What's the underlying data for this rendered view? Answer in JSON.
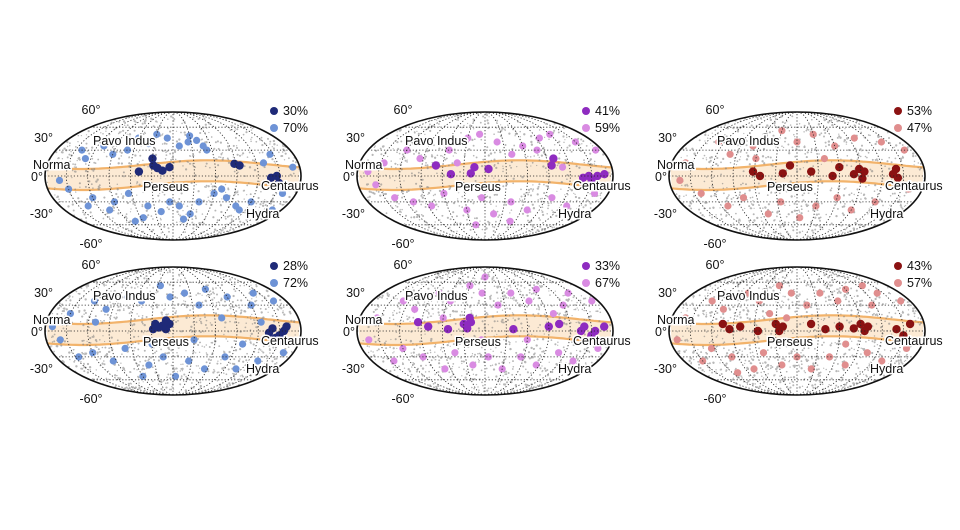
{
  "chart_data": [
    {
      "type": "scatter",
      "projection": "mollweide",
      "lat_ticks": [
        "60°",
        "30°",
        "0°",
        "-30°",
        "-60°"
      ],
      "region_labels": [
        "Norma",
        "Pavo Indus",
        "Perseus",
        "Centaurus",
        "Hydra"
      ],
      "legend": [
        {
          "label": "30%",
          "color": "#1f2a78"
        },
        {
          "label": "70%",
          "color": "#6e93d6"
        }
      ],
      "dark_points": [
        [
          95,
          12
        ],
        [
          88,
          14
        ],
        [
          -5,
          10
        ],
        [
          -15,
          6
        ],
        [
          -22,
          9
        ],
        [
          -28,
          12
        ],
        [
          -30,
          20
        ],
        [
          -48,
          5
        ],
        [
          138,
          -2
        ],
        [
          146,
          0
        ],
        [
          150,
          -8
        ],
        [
          155,
          -12
        ]
      ],
      "light_points": [
        [
          52,
          30
        ],
        [
          48,
          35
        ],
        [
          40,
          42
        ],
        [
          30,
          48
        ],
        [
          25,
          40
        ],
        [
          10,
          35
        ],
        [
          -10,
          45
        ],
        [
          -30,
          50
        ],
        [
          -40,
          38
        ],
        [
          -60,
          45
        ],
        [
          -70,
          30
        ],
        [
          -90,
          25
        ],
        [
          -110,
          35
        ],
        [
          -128,
          20
        ],
        [
          -140,
          30
        ],
        [
          70,
          -15
        ],
        [
          80,
          -25
        ],
        [
          60,
          -20
        ],
        [
          40,
          -30
        ],
        [
          30,
          -45
        ],
        [
          20,
          -52
        ],
        [
          10,
          -35
        ],
        [
          -5,
          -30
        ],
        [
          -20,
          -42
        ],
        [
          -40,
          -35
        ],
        [
          -55,
          -50
        ],
        [
          -65,
          -20
        ],
        [
          -75,
          -55
        ],
        [
          -90,
          -30
        ],
        [
          -105,
          -40
        ],
        [
          -120,
          -25
        ],
        [
          -135,
          -35
        ],
        [
          -150,
          -15
        ],
        [
          -160,
          -5
        ],
        [
          120,
          -30
        ],
        [
          110,
          -40
        ],
        [
          130,
          15
        ],
        [
          100,
          -35
        ],
        [
          160,
          -20
        ],
        [
          170,
          10
        ],
        [
          165,
          -40
        ],
        [
          145,
          25
        ]
      ]
    },
    {
      "type": "scatter",
      "projection": "mollweide",
      "lat_ticks": [
        "60°",
        "30°",
        "0°",
        "-30°",
        "-60°"
      ],
      "region_labels": [
        "Norma",
        "Pavo Indus",
        "Perseus",
        "Centaurus",
        "Hydra"
      ],
      "legend": [
        {
          "label": "41%",
          "color": "#8e2bc0"
        },
        {
          "label": "59%",
          "color": "#d98be2"
        }
      ],
      "dark_points": [
        [
          168,
          2
        ],
        [
          158,
          0
        ],
        [
          100,
          20
        ],
        [
          95,
          12
        ],
        [
          5,
          8
        ],
        [
          -15,
          10
        ],
        [
          -20,
          3
        ],
        [
          -48,
          2
        ],
        [
          -70,
          12
        ],
        [
          138,
          -2
        ],
        [
          146,
          0
        ],
        [
          150,
          -4
        ]
      ],
      "light_points": [
        [
          170,
          30
        ],
        [
          150,
          40
        ],
        [
          120,
          50
        ],
        [
          95,
          45
        ],
        [
          80,
          30
        ],
        [
          60,
          35
        ],
        [
          40,
          25
        ],
        [
          20,
          40
        ],
        [
          -10,
          50
        ],
        [
          -30,
          45
        ],
        [
          -55,
          30
        ],
        [
          -70,
          40
        ],
        [
          -95,
          20
        ],
        [
          -120,
          30
        ],
        [
          -145,
          15
        ],
        [
          -165,
          5
        ],
        [
          160,
          -20
        ],
        [
          130,
          -35
        ],
        [
          100,
          -25
        ],
        [
          70,
          -40
        ],
        [
          40,
          -30
        ],
        [
          15,
          -45
        ],
        [
          -5,
          -25
        ],
        [
          -30,
          -40
        ],
        [
          -60,
          -20
        ],
        [
          -85,
          -35
        ],
        [
          -110,
          -30
        ],
        [
          -135,
          -25
        ],
        [
          -155,
          -10
        ],
        [
          -20,
          -60
        ],
        [
          50,
          -55
        ],
        [
          110,
          10
        ],
        [
          -40,
          15
        ],
        [
          0,
          -15
        ]
      ]
    },
    {
      "type": "scatter",
      "projection": "mollweide",
      "lat_ticks": [
        "60°",
        "30°",
        "0°",
        "-30°",
        "-60°"
      ],
      "region_labels": [
        "Norma",
        "Pavo Indus",
        "Perseus",
        "Centaurus",
        "Hydra"
      ],
      "legend": [
        {
          "label": "53%",
          "color": "#8b1212"
        },
        {
          "label": "47%",
          "color": "#e08e8e"
        }
      ],
      "dark_points": [
        [
          95,
          5
        ],
        [
          92,
          -3
        ],
        [
          88,
          8
        ],
        [
          80,
          2
        ],
        [
          60,
          10
        ],
        [
          50,
          0
        ],
        [
          20,
          5
        ],
        [
          -20,
          3
        ],
        [
          -52,
          0
        ],
        [
          -62,
          5
        ],
        [
          135,
          2
        ],
        [
          140,
          8
        ],
        [
          142,
          -2
        ],
        [
          -10,
          12
        ]
      ],
      "light_points": [
        [
          165,
          30
        ],
        [
          140,
          40
        ],
        [
          100,
          45
        ],
        [
          60,
          35
        ],
        [
          30,
          50
        ],
        [
          0,
          40
        ],
        [
          -30,
          55
        ],
        [
          -70,
          35
        ],
        [
          -100,
          25
        ],
        [
          -130,
          40
        ],
        [
          -160,
          15
        ],
        [
          160,
          -15
        ],
        [
          120,
          -30
        ],
        [
          90,
          -40
        ],
        [
          60,
          -25
        ],
        [
          30,
          -35
        ],
        [
          5,
          -50
        ],
        [
          -25,
          -30
        ],
        [
          -50,
          -45
        ],
        [
          -80,
          -25
        ],
        [
          -110,
          -35
        ],
        [
          -140,
          -20
        ],
        [
          -165,
          -5
        ],
        [
          40,
          20
        ],
        [
          -60,
          20
        ]
      ]
    },
    {
      "type": "scatter",
      "projection": "mollweide",
      "lat_ticks": [
        "60°",
        "30°",
        "0°",
        "-30°",
        "-60°"
      ],
      "region_labels": [
        "Norma",
        "Pavo Indus",
        "Perseus",
        "Centaurus",
        "Hydra"
      ],
      "legend": [
        {
          "label": "28%",
          "color": "#1f2a78"
        },
        {
          "label": "72%",
          "color": "#6e93d6"
        }
      ],
      "dark_points": [
        [
          160,
          5
        ],
        [
          156,
          0
        ],
        [
          -5,
          8
        ],
        [
          -10,
          2
        ],
        [
          -15,
          6
        ],
        [
          -20,
          4
        ],
        [
          -25,
          8
        ],
        [
          -10,
          12
        ],
        [
          -28,
          2
        ],
        [
          135,
          -2
        ],
        [
          140,
          3
        ],
        [
          145,
          -8
        ],
        [
          155,
          -12
        ],
        [
          150,
          -5
        ]
      ],
      "light_points": [
        [
          160,
          35
        ],
        [
          140,
          45
        ],
        [
          120,
          30
        ],
        [
          90,
          40
        ],
        [
          60,
          50
        ],
        [
          40,
          30
        ],
        [
          20,
          45
        ],
        [
          -5,
          40
        ],
        [
          -25,
          55
        ],
        [
          -50,
          35
        ],
        [
          -75,
          40
        ],
        [
          -100,
          25
        ],
        [
          -125,
          35
        ],
        [
          -150,
          20
        ],
        [
          -170,
          5
        ],
        [
          165,
          -25
        ],
        [
          135,
          -35
        ],
        [
          110,
          -45
        ],
        [
          80,
          -30
        ],
        [
          55,
          -45
        ],
        [
          25,
          -35
        ],
        [
          5,
          -55
        ],
        [
          -15,
          -30
        ],
        [
          -40,
          -40
        ],
        [
          -70,
          -20
        ],
        [
          -95,
          -35
        ],
        [
          -120,
          -25
        ],
        [
          -145,
          -30
        ],
        [
          -160,
          -10
        ],
        [
          -30,
          -15
        ],
        [
          30,
          -10
        ],
        [
          70,
          15
        ],
        [
          -60,
          -55
        ],
        [
          100,
          -15
        ],
        [
          -110,
          10
        ],
        [
          125,
          10
        ]
      ]
    },
    {
      "type": "scatter",
      "projection": "mollweide",
      "lat_ticks": [
        "60°",
        "30°",
        "0°",
        "-30°",
        "-60°"
      ],
      "region_labels": [
        "Norma",
        "Pavo Indus",
        "Perseus",
        "Centaurus",
        "Hydra"
      ],
      "legend": [
        {
          "label": "33%",
          "color": "#8e2bc0"
        },
        {
          "label": "67%",
          "color": "#d98be2"
        }
      ],
      "dark_points": [
        [
          168,
          5
        ],
        [
          155,
          0
        ],
        [
          105,
          8
        ],
        [
          90,
          5
        ],
        [
          40,
          2
        ],
        [
          -20,
          10
        ],
        [
          -25,
          3
        ],
        [
          -30,
          8
        ],
        [
          -22,
          15
        ],
        [
          -52,
          2
        ],
        [
          -80,
          5
        ],
        [
          -95,
          10
        ],
        [
          135,
          0
        ],
        [
          140,
          5
        ],
        [
          150,
          -5
        ]
      ],
      "light_points": [
        [
          170,
          35
        ],
        [
          145,
          45
        ],
        [
          120,
          30
        ],
        [
          95,
          50
        ],
        [
          70,
          35
        ],
        [
          45,
          45
        ],
        [
          20,
          30
        ],
        [
          -5,
          45
        ],
        [
          -30,
          55
        ],
        [
          -55,
          35
        ],
        [
          -80,
          45
        ],
        [
          -105,
          25
        ],
        [
          -130,
          35
        ],
        [
          -155,
          15
        ],
        [
          165,
          -20
        ],
        [
          140,
          -35
        ],
        [
          110,
          -25
        ],
        [
          85,
          -40
        ],
        [
          55,
          -30
        ],
        [
          30,
          -45
        ],
        [
          5,
          -30
        ],
        [
          -20,
          -40
        ],
        [
          -45,
          -25
        ],
        [
          -70,
          -45
        ],
        [
          -95,
          -30
        ],
        [
          -120,
          -20
        ],
        [
          -145,
          -35
        ],
        [
          -165,
          -10
        ],
        [
          60,
          -10
        ],
        [
          -5,
          -10
        ],
        [
          -60,
          15
        ],
        [
          100,
          20
        ],
        [
          0,
          68
        ]
      ]
    },
    {
      "type": "scatter",
      "projection": "mollweide",
      "lat_ticks": [
        "60°",
        "30°",
        "0°",
        "-30°",
        "-60°"
      ],
      "region_labels": [
        "Norma",
        "Pavo Indus",
        "Perseus",
        "Centaurus",
        "Hydra"
      ],
      "legend": [
        {
          "label": "43%",
          "color": "#8b1212"
        },
        {
          "label": "57%",
          "color": "#e08e8e"
        }
      ],
      "dark_points": [
        [
          100,
          5
        ],
        [
          95,
          0
        ],
        [
          90,
          8
        ],
        [
          80,
          3
        ],
        [
          60,
          5
        ],
        [
          40,
          2
        ],
        [
          20,
          8
        ],
        [
          -20,
          5
        ],
        [
          -25,
          0
        ],
        [
          -30,
          8
        ],
        [
          -55,
          0
        ],
        [
          -80,
          5
        ],
        [
          -95,
          2
        ],
        [
          -105,
          8
        ],
        [
          140,
          2
        ],
        [
          150,
          -5
        ],
        [
          160,
          8
        ]
      ],
      "light_points": [
        [
          165,
          35
        ],
        [
          140,
          45
        ],
        [
          115,
          30
        ],
        [
          90,
          50
        ],
        [
          65,
          35
        ],
        [
          40,
          45
        ],
        [
          15,
          30
        ],
        [
          -10,
          45
        ],
        [
          -35,
          55
        ],
        [
          -60,
          35
        ],
        [
          -85,
          45
        ],
        [
          -110,
          25
        ],
        [
          -135,
          35
        ],
        [
          -160,
          15
        ],
        [
          160,
          -20
        ],
        [
          135,
          -35
        ],
        [
          105,
          -25
        ],
        [
          80,
          -40
        ],
        [
          50,
          -30
        ],
        [
          25,
          -45
        ],
        [
          0,
          -30
        ],
        [
          -25,
          -40
        ],
        [
          -50,
          -25
        ],
        [
          -75,
          -45
        ],
        [
          -100,
          -30
        ],
        [
          -125,
          -20
        ],
        [
          -150,
          -35
        ],
        [
          -170,
          -10
        ],
        [
          -40,
          20
        ],
        [
          70,
          -15
        ],
        [
          -110,
          -50
        ],
        [
          130,
          55
        ],
        [
          -15,
          15
        ]
      ]
    }
  ]
}
